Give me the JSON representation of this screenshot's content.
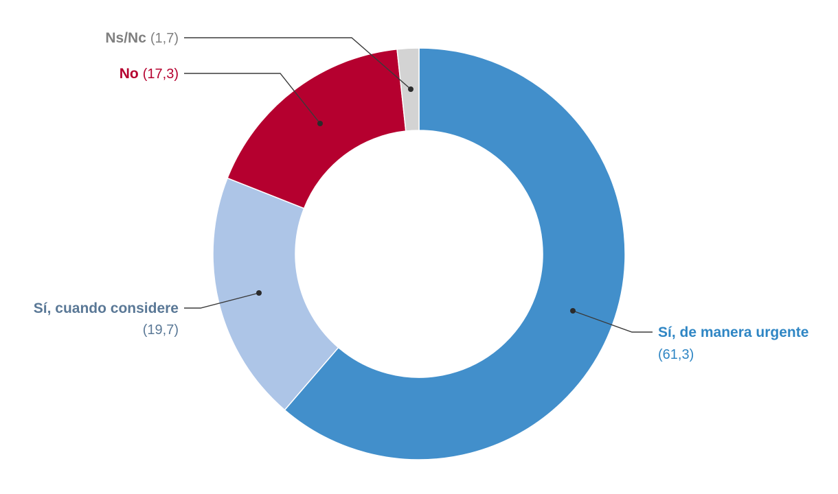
{
  "chart_data": {
    "type": "pie",
    "donut": true,
    "slices": [
      {
        "label": "Sí, de manera urgente",
        "value": 61.3,
        "value_text": "(61,3)",
        "color": "#428fcb",
        "label_color": "#2f86c4"
      },
      {
        "label": "Sí, cuando considere",
        "value": 19.7,
        "value_text": "(19,7)",
        "color": "#adc5e7",
        "label_color": "#5a7896"
      },
      {
        "label": "No",
        "value": 17.3,
        "value_text": "(17,3)",
        "color": "#b5002f",
        "label_color": "#b5002f"
      },
      {
        "label": "Ns/Nc",
        "value": 1.7,
        "value_text": "(1,7)",
        "color": "#d3d3d3",
        "label_color": "#7f7f7f"
      }
    ]
  }
}
